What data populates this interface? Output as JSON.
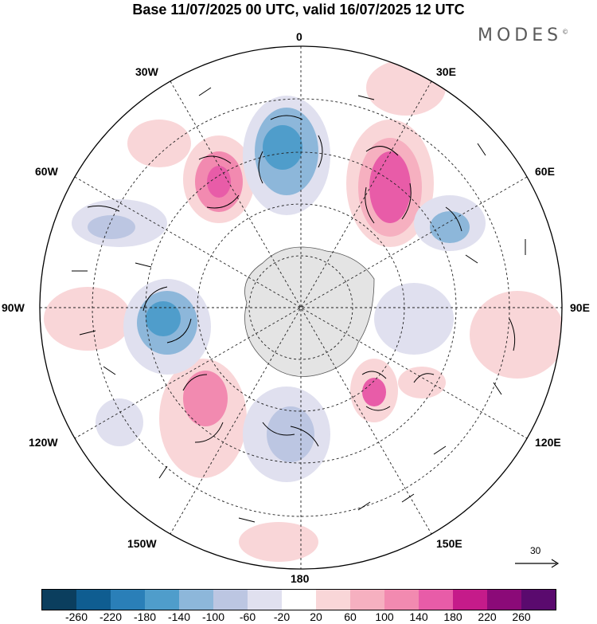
{
  "title": "Base 11/07/2025 00 UTC, valid 16/07/2025 12 UTC",
  "brand": {
    "name": "MODES",
    "mark": "©"
  },
  "map": {
    "projection": "south-polar-stereographic",
    "field": "geopotential height anomaly with wind vectors",
    "longitude_labels": [
      "0",
      "30E",
      "60E",
      "90E",
      "120E",
      "150E",
      "180",
      "150W",
      "120W",
      "90W",
      "60W",
      "30W"
    ]
  },
  "reference_vector": {
    "value": "30"
  },
  "colorbar": {
    "ticks": [
      "-260",
      "-220",
      "-180",
      "-140",
      "-100",
      "-60",
      "-20",
      "20",
      "60",
      "100",
      "140",
      "180",
      "220",
      "260"
    ],
    "colors": [
      "#0b3e5e",
      "#0f5d91",
      "#2a7fb8",
      "#4f9dcb",
      "#8db7da",
      "#bcc6e2",
      "#e0e0ef",
      "#ffffff",
      "#f9d6d8",
      "#f6b0c0",
      "#f28ab0",
      "#e85ca8",
      "#c51b8a",
      "#8b0a78",
      "#5a0a6e"
    ]
  }
}
